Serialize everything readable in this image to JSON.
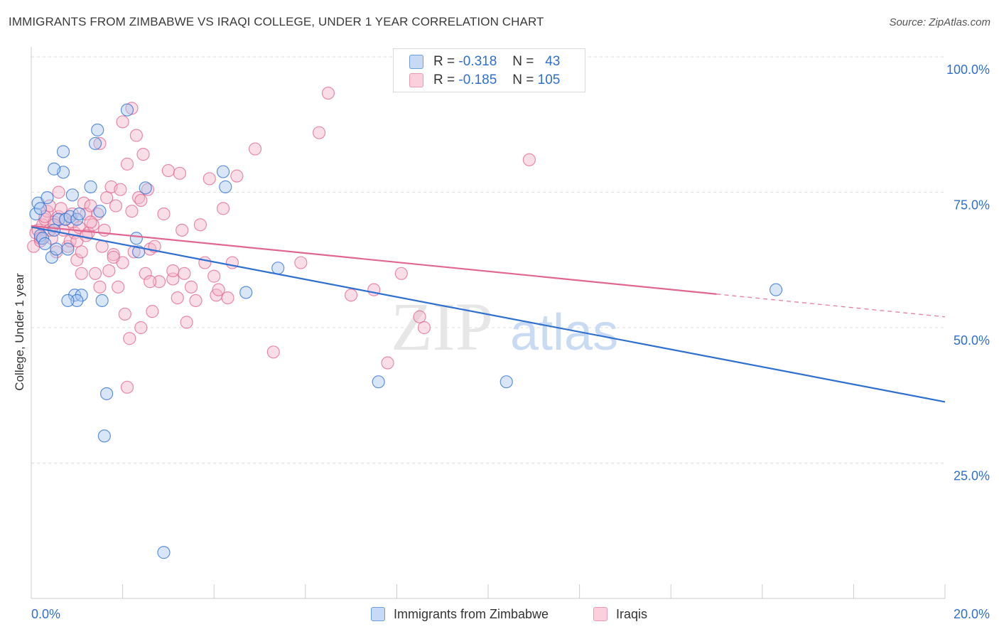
{
  "title": "IMMIGRANTS FROM ZIMBABWE VS IRAQI COLLEGE, UNDER 1 YEAR CORRELATION CHART",
  "source": "Source: ZipAtlas.com",
  "watermark": {
    "part1": "ZIP",
    "part2": "atlas"
  },
  "legend": {
    "rows": [
      {
        "r_label": "R =",
        "r_value": "-0.318",
        "n_label": "N =",
        "n_value": "43"
      },
      {
        "r_label": "R =",
        "r_value": "-0.185",
        "n_label": "N =",
        "n_value": "105"
      }
    ]
  },
  "colors": {
    "blue": "#2f6fcf",
    "blue_fill": "#a9c8ef",
    "pink": "#e0678f",
    "pink_fill": "#f4b5c9",
    "grid": "#dddddd",
    "tick_label": "#2f6fcf"
  },
  "chart_data": {
    "type": "scatter",
    "title": "IMMIGRANTS FROM ZIMBABWE VS IRAQI COLLEGE, UNDER 1 YEAR CORRELATION CHART",
    "xlabel": "",
    "ylabel": "College, Under 1 year",
    "xlim": [
      0,
      20
    ],
    "ylim": [
      0,
      100
    ],
    "x_tick_labels": [
      "0.0%",
      "20.0%"
    ],
    "y_ticks": [
      25,
      50,
      75,
      100
    ],
    "y_tick_labels": [
      "25.0%",
      "50.0%",
      "75.0%",
      "100.0%"
    ],
    "grid": true,
    "legend_position": "top-center",
    "series": [
      {
        "name": "Immigrants from Zimbabwe",
        "color": "#2f6fcf",
        "trend": {
          "x": [
            0,
            20
          ],
          "y": [
            68.6,
            36.3
          ],
          "dashed_from": null
        },
        "points": [
          [
            0.1,
            71.0
          ],
          [
            0.15,
            73.0
          ],
          [
            0.2,
            67.0
          ],
          [
            0.25,
            66.5
          ],
          [
            0.3,
            65.5
          ],
          [
            0.35,
            74.0
          ],
          [
            0.45,
            63.0
          ],
          [
            0.5,
            68.0
          ],
          [
            0.55,
            64.5
          ],
          [
            0.6,
            70.0
          ],
          [
            0.7,
            78.7
          ],
          [
            0.75,
            70.0
          ],
          [
            0.8,
            64.5
          ],
          [
            0.85,
            70.5
          ],
          [
            0.9,
            74.5
          ],
          [
            0.95,
            56.0
          ],
          [
            1.0,
            70.0
          ],
          [
            1.05,
            71.0
          ],
          [
            1.1,
            56.0
          ],
          [
            1.4,
            84.0
          ],
          [
            1.45,
            86.5
          ],
          [
            1.5,
            71.5
          ],
          [
            1.55,
            55.0
          ],
          [
            1.6,
            30.0
          ],
          [
            1.65,
            37.8
          ],
          [
            2.1,
            90.2
          ],
          [
            2.3,
            66.5
          ],
          [
            2.35,
            64.0
          ],
          [
            2.5,
            75.8
          ],
          [
            2.9,
            8.5
          ],
          [
            4.2,
            78.8
          ],
          [
            4.25,
            76.0
          ],
          [
            4.7,
            56.5
          ],
          [
            5.4,
            61.0
          ],
          [
            7.6,
            40.0
          ],
          [
            10.4,
            40.0
          ],
          [
            16.3,
            57.0
          ],
          [
            0.5,
            79.3
          ],
          [
            0.7,
            82.5
          ],
          [
            1.0,
            55.0
          ],
          [
            1.3,
            76.0
          ],
          [
            0.2,
            72.0
          ],
          [
            0.8,
            55.0
          ]
        ]
      },
      {
        "name": "Iraqis",
        "color": "#e0678f",
        "trend": {
          "x": [
            0,
            20
          ],
          "y": [
            68.8,
            52.0
          ],
          "dashed_from": 15.0
        },
        "points": [
          [
            0.05,
            65.0
          ],
          [
            0.1,
            67.5
          ],
          [
            0.15,
            68.0
          ],
          [
            0.2,
            66.0
          ],
          [
            0.25,
            69.0
          ],
          [
            0.3,
            70.0
          ],
          [
            0.35,
            71.5
          ],
          [
            0.4,
            72.5
          ],
          [
            0.45,
            66.5
          ],
          [
            0.5,
            69.5
          ],
          [
            0.55,
            64.0
          ],
          [
            0.6,
            70.5
          ],
          [
            0.65,
            72.0
          ],
          [
            0.7,
            68.0
          ],
          [
            0.75,
            70.0
          ],
          [
            0.8,
            65.0
          ],
          [
            0.85,
            66.0
          ],
          [
            0.9,
            69.5
          ],
          [
            0.95,
            67.5
          ],
          [
            1.0,
            62.5
          ],
          [
            1.05,
            68.5
          ],
          [
            1.1,
            64.0
          ],
          [
            1.15,
            73.0
          ],
          [
            1.2,
            71.0
          ],
          [
            1.25,
            67.5
          ],
          [
            1.3,
            72.5
          ],
          [
            1.35,
            69.0
          ],
          [
            1.4,
            60.0
          ],
          [
            1.45,
            71.0
          ],
          [
            1.5,
            57.5
          ],
          [
            1.55,
            65.0
          ],
          [
            1.6,
            68.0
          ],
          [
            1.65,
            74.0
          ],
          [
            1.7,
            60.5
          ],
          [
            1.75,
            76.0
          ],
          [
            1.8,
            63.5
          ],
          [
            1.85,
            72.5
          ],
          [
            1.9,
            57.5
          ],
          [
            1.95,
            75.5
          ],
          [
            2.0,
            62.0
          ],
          [
            2.05,
            52.5
          ],
          [
            2.1,
            80.2
          ],
          [
            2.15,
            48.0
          ],
          [
            2.2,
            71.5
          ],
          [
            2.25,
            64.0
          ],
          [
            2.3,
            85.5
          ],
          [
            2.35,
            74.0
          ],
          [
            2.4,
            50.0
          ],
          [
            2.45,
            82.0
          ],
          [
            2.5,
            60.0
          ],
          [
            2.55,
            75.5
          ],
          [
            2.6,
            64.5
          ],
          [
            2.65,
            53.0
          ],
          [
            2.7,
            65.0
          ],
          [
            2.8,
            58.5
          ],
          [
            2.9,
            71.0
          ],
          [
            3.0,
            79.0
          ],
          [
            3.1,
            59.0
          ],
          [
            3.2,
            55.5
          ],
          [
            3.25,
            78.5
          ],
          [
            3.3,
            68.0
          ],
          [
            3.35,
            60.0
          ],
          [
            3.4,
            51.0
          ],
          [
            3.5,
            57.5
          ],
          [
            3.6,
            55.0
          ],
          [
            3.7,
            69.0
          ],
          [
            3.8,
            62.0
          ],
          [
            3.9,
            77.5
          ],
          [
            4.0,
            59.5
          ],
          [
            4.05,
            56.0
          ],
          [
            4.1,
            57.0
          ],
          [
            4.2,
            72.0
          ],
          [
            4.3,
            55.5
          ],
          [
            4.4,
            62.0
          ],
          [
            4.5,
            78.0
          ],
          [
            4.9,
            83.0
          ],
          [
            5.3,
            45.5
          ],
          [
            5.9,
            62.0
          ],
          [
            6.3,
            86.0
          ],
          [
            6.5,
            93.3
          ],
          [
            7.0,
            56.0
          ],
          [
            7.5,
            57.0
          ],
          [
            7.8,
            43.5
          ],
          [
            8.1,
            60.0
          ],
          [
            8.5,
            52.0
          ],
          [
            8.6,
            50.0
          ],
          [
            10.9,
            81.0
          ],
          [
            2.2,
            90.5
          ],
          [
            1.5,
            84.0
          ],
          [
            2.0,
            88.0
          ],
          [
            0.6,
            75.0
          ],
          [
            1.1,
            60.0
          ],
          [
            2.1,
            39.0
          ],
          [
            1.8,
            63.0
          ],
          [
            1.3,
            69.5
          ],
          [
            0.3,
            70.5
          ],
          [
            0.4,
            68.0
          ],
          [
            0.9,
            71.0
          ],
          [
            1.0,
            66.0
          ],
          [
            1.2,
            67.0
          ],
          [
            2.4,
            73.5
          ],
          [
            2.6,
            58.5
          ],
          [
            3.1,
            60.5
          ],
          [
            0.2,
            66.5
          ],
          [
            0.5,
            69.0
          ]
        ]
      }
    ]
  }
}
